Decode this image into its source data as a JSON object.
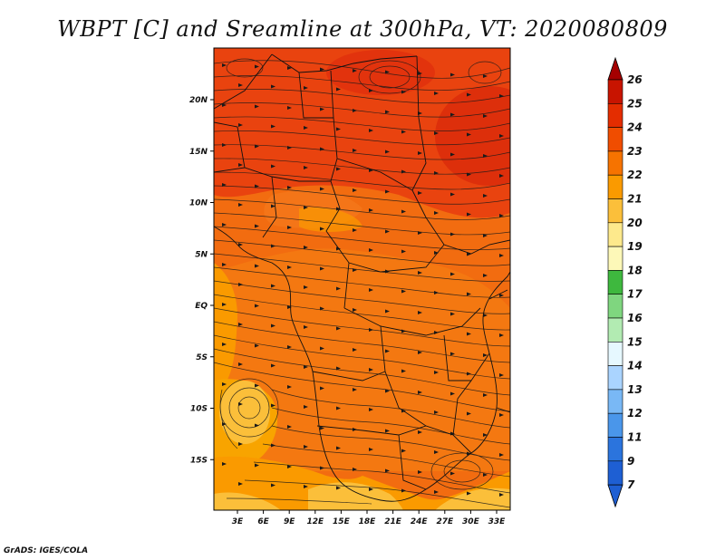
{
  "title": "WBPT [C] and Sreamline at 300hPa, VT: 2020080809",
  "credit": "GrADS: IGES/COLA",
  "map": {
    "lon_labels": [
      "3E",
      "6E",
      "9E",
      "12E",
      "15E",
      "18E",
      "21E",
      "24E",
      "27E",
      "30E",
      "33E"
    ],
    "lat_labels": [
      "20N",
      "15N",
      "10N",
      "5N",
      "EQ",
      "5S",
      "10S",
      "15S"
    ]
  },
  "colorbar": {
    "labels": [
      "26",
      "25",
      "24",
      "23",
      "22",
      "21",
      "20",
      "19",
      "18",
      "17",
      "16",
      "15",
      "14",
      "13",
      "12",
      "11",
      "9",
      "7"
    ],
    "colors": [
      "#a50000",
      "#c81400",
      "#e42d00",
      "#f04d00",
      "#f67300",
      "#fa9a00",
      "#fbbf3a",
      "#fde98c",
      "#fdf8b8",
      "#3eb83e",
      "#7fd67f",
      "#b2ebb2",
      "#e6f8ff",
      "#aad4ff",
      "#79b8f5",
      "#4a96ea",
      "#2b74dd",
      "#1e5fd3"
    ]
  }
}
